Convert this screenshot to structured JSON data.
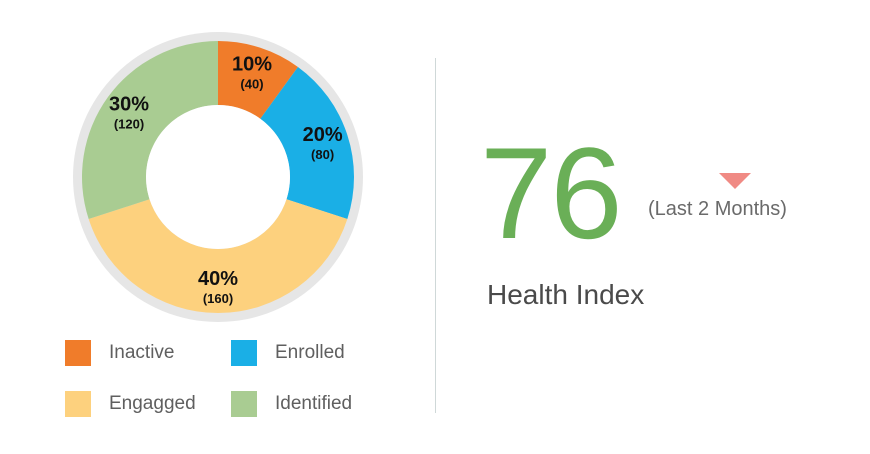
{
  "chart_data": {
    "type": "pie",
    "subtype": "donut",
    "segments": [
      {
        "name": "Inactive",
        "percent_label": "10%",
        "count_label": "(40)",
        "value": 40,
        "color": "#f07c2a"
      },
      {
        "name": "Enrolled",
        "percent_label": "20%",
        "count_label": "(80)",
        "value": 80,
        "color": "#1aafe6"
      },
      {
        "name": "Engagged",
        "percent_label": "40%",
        "count_label": "(160)",
        "value": 160,
        "color": "#fdd17e"
      },
      {
        "name": "Identified",
        "percent_label": "30%",
        "count_label": "(120)",
        "value": 120,
        "color": "#a9cc92"
      }
    ],
    "legend_position": "bottom",
    "ring_color": "#e6e6e6"
  },
  "legend": {
    "items": [
      {
        "label": "Inactive",
        "color": "#f07c2a"
      },
      {
        "label": "Enrolled",
        "color": "#1aafe6"
      },
      {
        "label": "Engagged",
        "color": "#fdd17e"
      },
      {
        "label": "Identified",
        "color": "#a9cc92"
      }
    ]
  },
  "metric": {
    "value": "76",
    "period": "(Last 2 Months)",
    "label": "Health Index",
    "trend": "down",
    "trend_icon": "triangle-down-icon",
    "value_color": "#6aaf57",
    "trend_color": "#f08a84"
  }
}
